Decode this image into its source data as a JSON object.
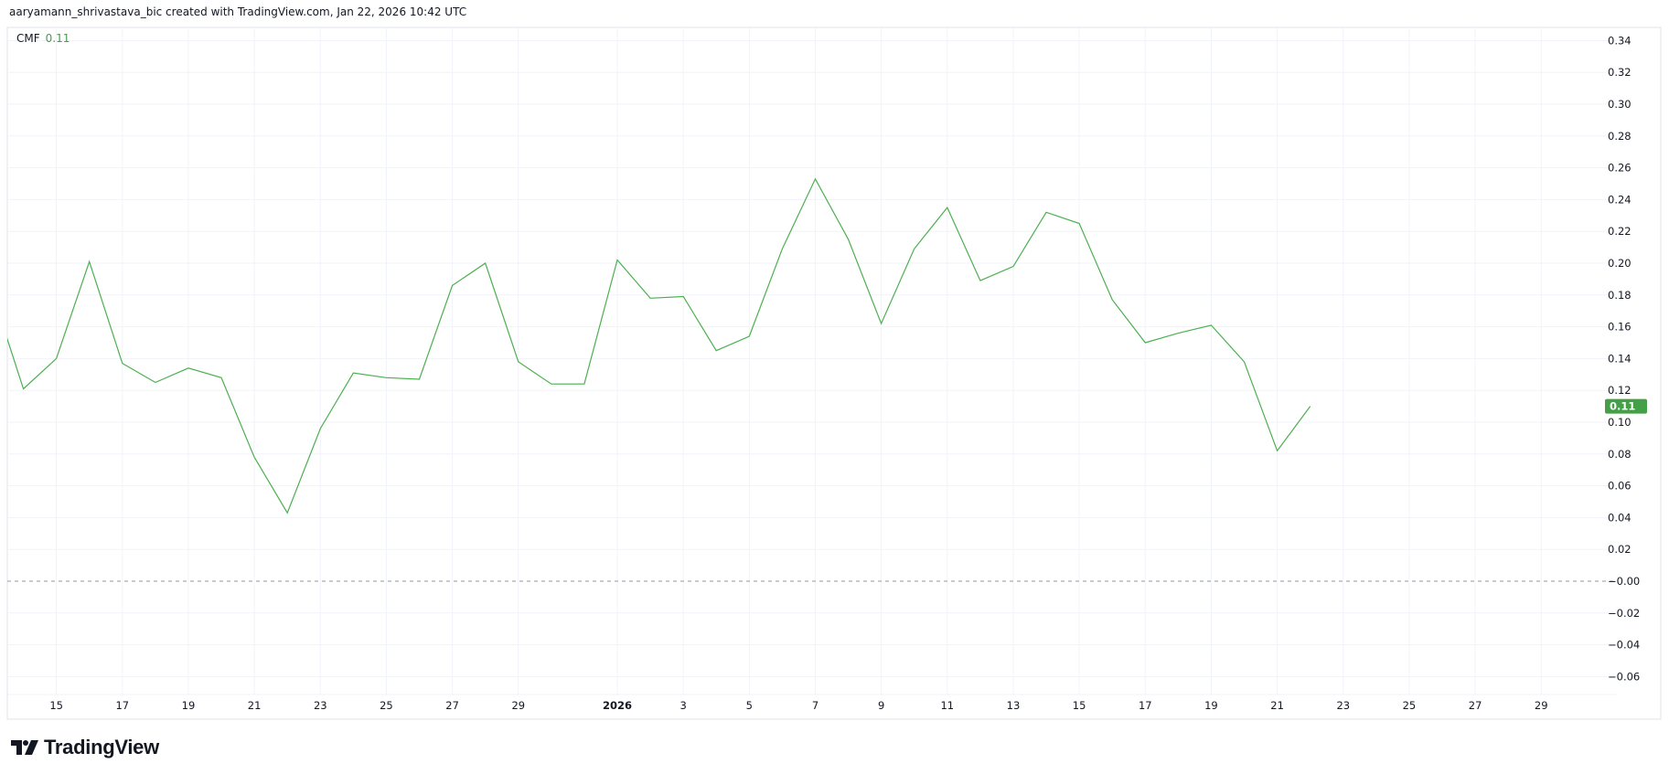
{
  "header": {
    "text": "aaryamann_shrivastava_bic created with TradingView.com, Jan 22, 2026 10:42 UTC"
  },
  "legend": {
    "name": "CMF",
    "value": "0.11"
  },
  "logo": {
    "text": "TradingView"
  },
  "colors": {
    "line": "#4caf50",
    "badge": "#43a047",
    "zero_line": "#9598a1",
    "grid": "#f0f3fa"
  },
  "chart_data": {
    "type": "line",
    "title": "",
    "series": [
      {
        "name": "CMF",
        "x": [
          "2025-12-13",
          "2025-12-14",
          "2025-12-15",
          "2025-12-16",
          "2025-12-17",
          "2025-12-18",
          "2025-12-19",
          "2025-12-20",
          "2025-12-21",
          "2025-12-22",
          "2025-12-23",
          "2025-12-24",
          "2025-12-25",
          "2025-12-26",
          "2025-12-27",
          "2025-12-28",
          "2025-12-29",
          "2025-12-30",
          "2025-12-31",
          "2026-01-01",
          "2026-01-02",
          "2026-01-03",
          "2026-01-04",
          "2026-01-05",
          "2026-01-06",
          "2026-01-07",
          "2026-01-08",
          "2026-01-09",
          "2026-01-10",
          "2026-01-11",
          "2026-01-12",
          "2026-01-13",
          "2026-01-14",
          "2026-01-15",
          "2026-01-16",
          "2026-01-17",
          "2026-01-18",
          "2026-01-19",
          "2026-01-20",
          "2026-01-21",
          "2026-01-22"
        ],
        "values": [
          0.185,
          0.121,
          0.14,
          0.201,
          0.137,
          0.125,
          0.134,
          0.128,
          0.078,
          0.043,
          0.096,
          0.131,
          0.128,
          0.127,
          0.186,
          0.2,
          0.138,
          0.124,
          0.124,
          0.202,
          0.178,
          0.179,
          0.145,
          0.154,
          0.209,
          0.253,
          0.215,
          0.162,
          0.209,
          0.235,
          0.189,
          0.198,
          0.232,
          0.225,
          0.177,
          0.15,
          0.156,
          0.161,
          0.138,
          0.082,
          0.11
        ]
      }
    ],
    "last_value_label": "0.11",
    "reference_line": 0.0,
    "ylim": [
      -0.07,
      0.35
    ],
    "xlim": [
      "2025-12-13",
      "2026-01-31"
    ],
    "y_ticks": [
      "0.34",
      "0.32",
      "0.30",
      "0.28",
      "0.26",
      "0.24",
      "0.22",
      "0.20",
      "0.18",
      "0.16",
      "0.14",
      "0.12",
      "0.10",
      "0.08",
      "0.06",
      "0.04",
      "0.02",
      "−0.00",
      "−0.02",
      "−0.04",
      "−0.06"
    ],
    "x_ticks": [
      {
        "label": "15",
        "date": "2025-12-15"
      },
      {
        "label": "17",
        "date": "2025-12-17"
      },
      {
        "label": "19",
        "date": "2025-12-19"
      },
      {
        "label": "21",
        "date": "2025-12-21"
      },
      {
        "label": "23",
        "date": "2025-12-23"
      },
      {
        "label": "25",
        "date": "2025-12-25"
      },
      {
        "label": "27",
        "date": "2025-12-27"
      },
      {
        "label": "29",
        "date": "2025-12-29"
      },
      {
        "label": "2026",
        "date": "2026-01-01",
        "bold": true
      },
      {
        "label": "3",
        "date": "2026-01-03"
      },
      {
        "label": "5",
        "date": "2026-01-05"
      },
      {
        "label": "7",
        "date": "2026-01-07"
      },
      {
        "label": "9",
        "date": "2026-01-09"
      },
      {
        "label": "11",
        "date": "2026-01-11"
      },
      {
        "label": "13",
        "date": "2026-01-13"
      },
      {
        "label": "15",
        "date": "2026-01-15"
      },
      {
        "label": "17",
        "date": "2026-01-17"
      },
      {
        "label": "19",
        "date": "2026-01-19"
      },
      {
        "label": "21",
        "date": "2026-01-21"
      },
      {
        "label": "23",
        "date": "2026-01-23"
      },
      {
        "label": "25",
        "date": "2026-01-25"
      },
      {
        "label": "27",
        "date": "2026-01-27"
      },
      {
        "label": "29",
        "date": "2026-01-29"
      }
    ],
    "grid": true,
    "legend": "top-left"
  }
}
